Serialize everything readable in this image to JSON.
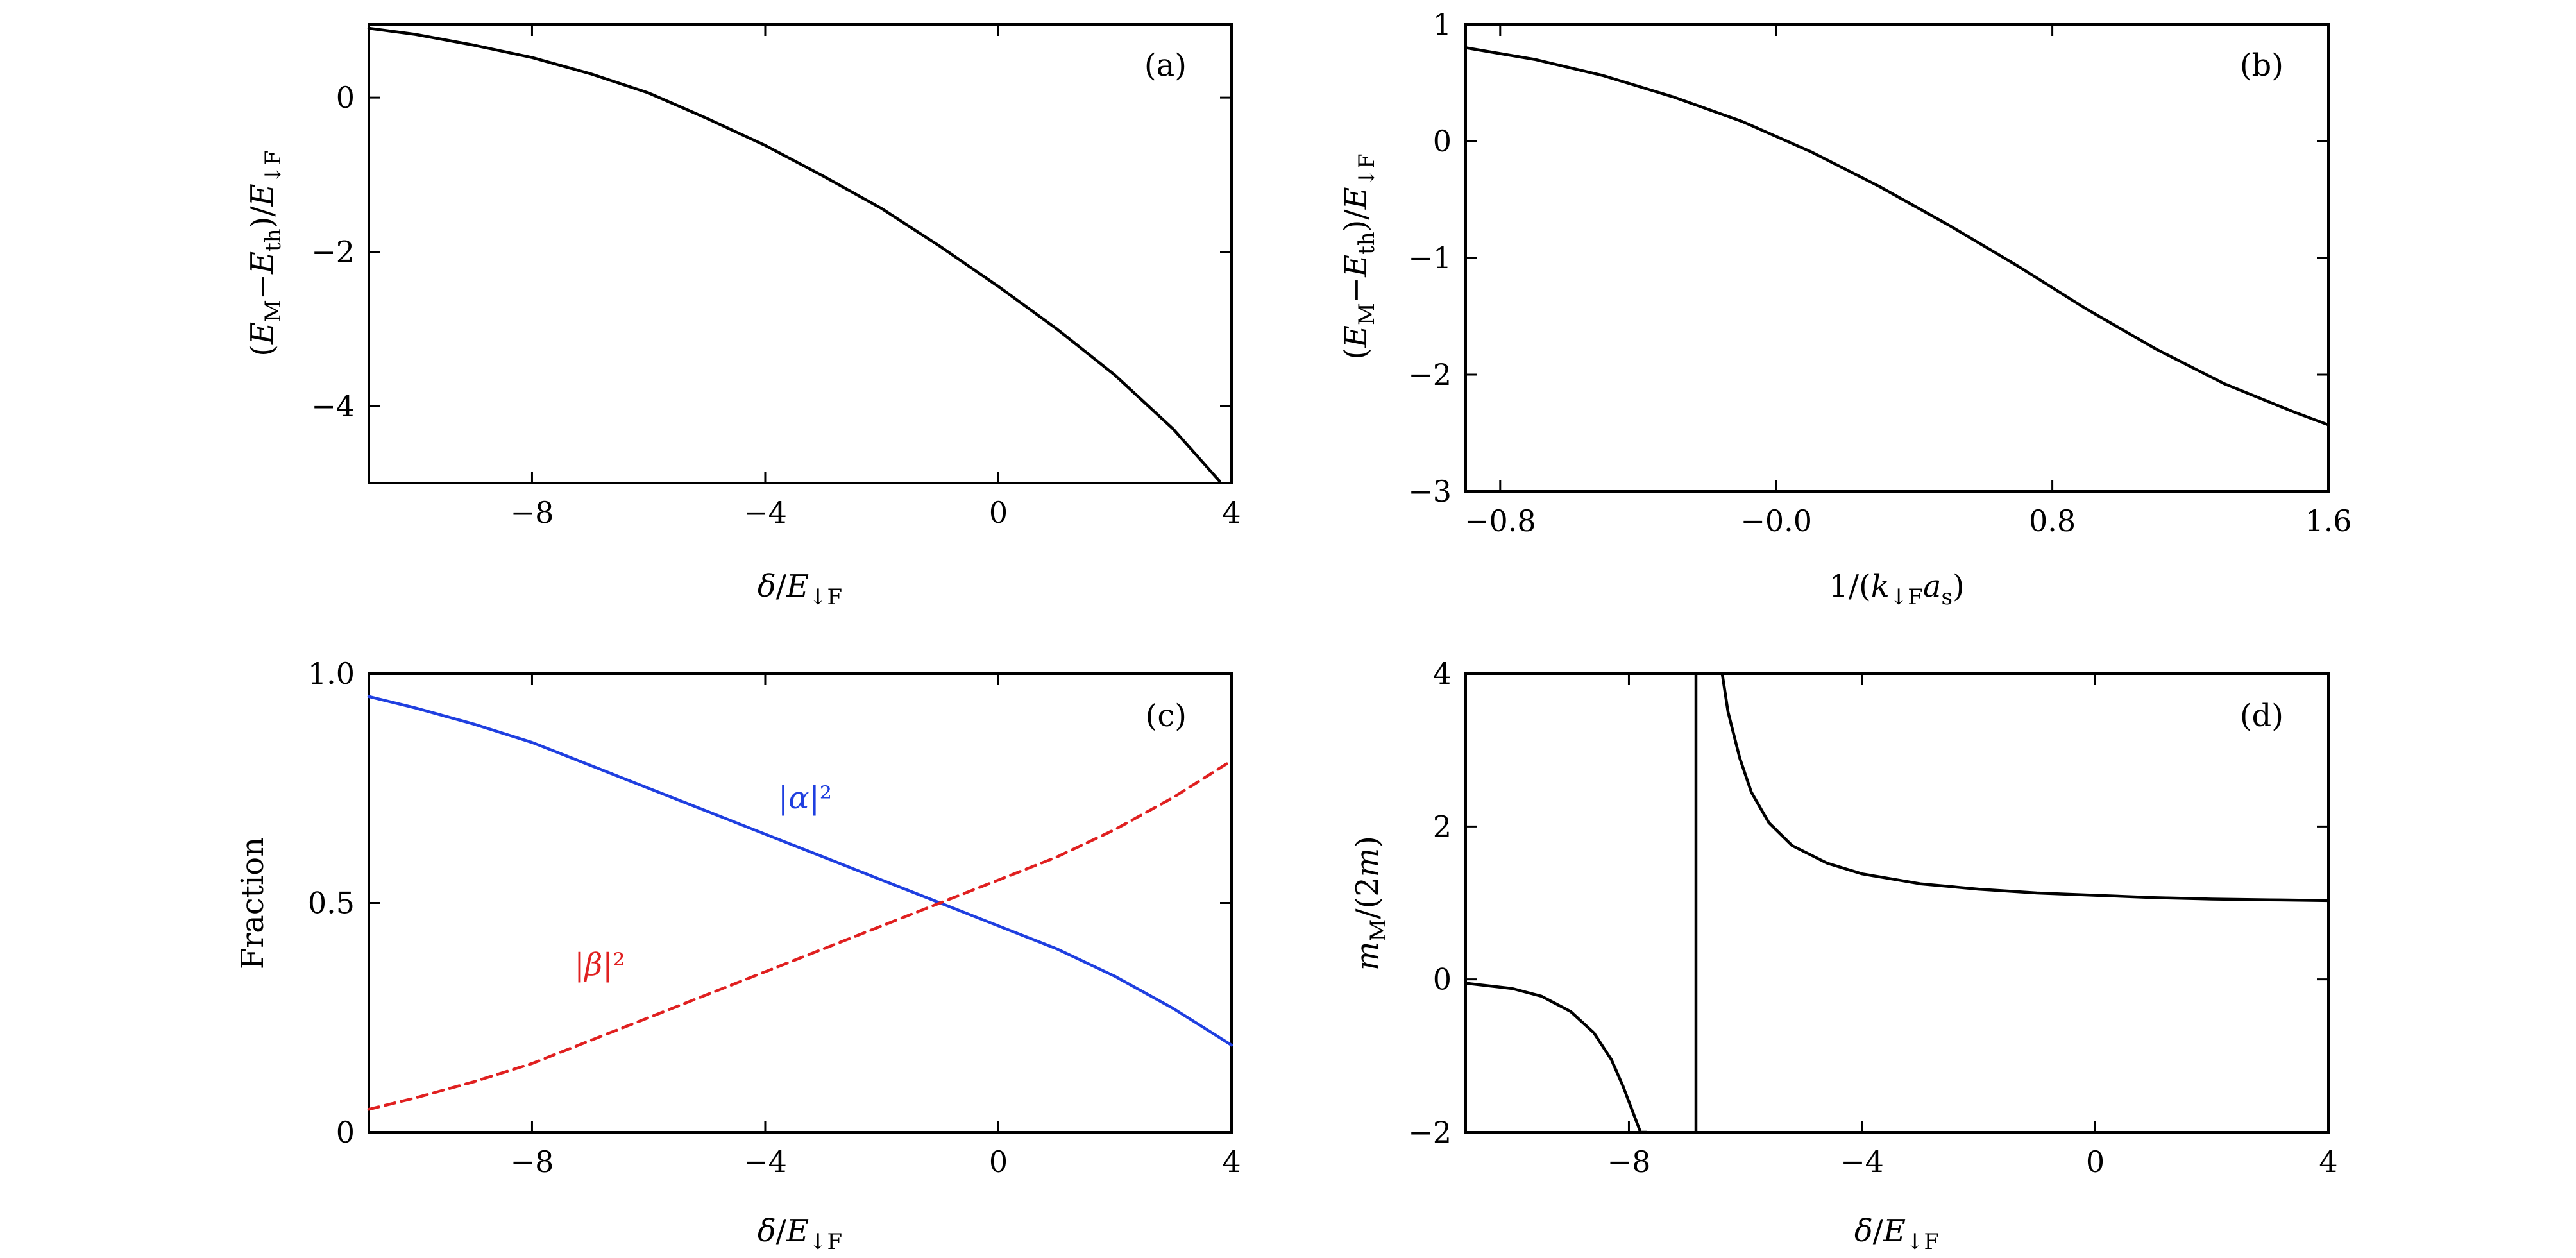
{
  "chart_data": [
    {
      "panel": "(a)",
      "type": "line",
      "xlabel": "δ/E↓F",
      "ylabel": "(EM−Eth)/E↓F",
      "xlim": [
        -10.8,
        4
      ],
      "ylim": [
        -5,
        0.95
      ],
      "xticks": [
        -8,
        -4,
        0,
        4
      ],
      "xtick_labels": [
        "−8",
        "−4",
        "0",
        "4"
      ],
      "yticks": [
        0,
        -2,
        -4
      ],
      "ytick_labels": [
        "0",
        "−2",
        "−4"
      ],
      "grid": false,
      "series": [
        {
          "color": "#000000",
          "dash": "solid",
          "x": [
            -10.8,
            -10,
            -9,
            -8,
            -7,
            -6,
            -5,
            -4,
            -3,
            -2,
            -1,
            0,
            1,
            2,
            3,
            3.8
          ],
          "y": [
            0.9,
            0.82,
            0.68,
            0.52,
            0.31,
            0.06,
            -0.27,
            -0.62,
            -1.02,
            -1.44,
            -1.93,
            -2.45,
            -3.0,
            -3.6,
            -4.3,
            -4.98
          ]
        }
      ]
    },
    {
      "panel": "(b)",
      "type": "line",
      "xlabel": "1/(k↓Fas)",
      "ylabel": "(EM−Eth)/E↓F",
      "xlim": [
        -0.9,
        1.6
      ],
      "ylim": [
        -3,
        1
      ],
      "xticks": [
        -0.8,
        0,
        0.8,
        1.6
      ],
      "xtick_labels": [
        "−0.8",
        "−0.0",
        "0.8",
        "1.6"
      ],
      "yticks": [
        1,
        0,
        -1,
        -2,
        -3
      ],
      "ytick_labels": [
        "1",
        "0",
        "−1",
        "−2",
        "−3"
      ],
      "grid": false,
      "series": [
        {
          "color": "#000000",
          "dash": "solid",
          "x": [
            -0.9,
            -0.7,
            -0.5,
            -0.3,
            -0.1,
            0.1,
            0.3,
            0.5,
            0.7,
            0.9,
            1.1,
            1.3,
            1.5,
            1.6
          ],
          "y": [
            0.8,
            0.7,
            0.56,
            0.38,
            0.17,
            -0.09,
            -0.39,
            -0.72,
            -1.07,
            -1.44,
            -1.78,
            -2.08,
            -2.32,
            -2.43
          ]
        }
      ]
    },
    {
      "panel": "(c)",
      "type": "line",
      "xlabel": "δ/E↓F",
      "ylabel": "Fraction",
      "xlim": [
        -10.8,
        4
      ],
      "ylim": [
        0,
        1.0
      ],
      "xticks": [
        -8,
        -4,
        0,
        4
      ],
      "xtick_labels": [
        "−8",
        "−4",
        "0",
        "4"
      ],
      "yticks": [
        1.0,
        0.5,
        0
      ],
      "ytick_labels": [
        "1.0",
        "0.5",
        "0"
      ],
      "grid": false,
      "annotations": [
        {
          "text": "|α|²",
          "x": -3.4,
          "y": 0.71,
          "color": "#1f3fe0"
        },
        {
          "text": "|β|²",
          "x": -7.2,
          "y": 0.35,
          "color": "#e02020"
        }
      ],
      "series": [
        {
          "label": "|α|²",
          "color": "#1f3fe0",
          "dash": "solid",
          "x": [
            -10.8,
            -10,
            -9,
            -8,
            -7,
            -6,
            -5,
            -4,
            -3,
            -2,
            -1,
            0,
            1,
            2,
            3,
            4
          ],
          "y": [
            0.95,
            0.925,
            0.89,
            0.85,
            0.8,
            0.75,
            0.7,
            0.65,
            0.6,
            0.55,
            0.5,
            0.45,
            0.4,
            0.34,
            0.27,
            0.19
          ]
        },
        {
          "label": "|β|²",
          "color": "#e02020",
          "dash": "dashed",
          "x": [
            -10.8,
            -10,
            -9,
            -8,
            -7,
            -6,
            -5,
            -4,
            -3,
            -2,
            -1,
            0,
            1,
            2,
            3,
            4
          ],
          "y": [
            0.05,
            0.075,
            0.11,
            0.15,
            0.2,
            0.25,
            0.3,
            0.35,
            0.4,
            0.45,
            0.5,
            0.55,
            0.6,
            0.66,
            0.73,
            0.81
          ]
        }
      ]
    },
    {
      "panel": "(d)",
      "type": "line",
      "xlabel": "δ/E↓F",
      "ylabel": "mM/(2m)",
      "xlim": [
        -10.8,
        4
      ],
      "ylim": [
        -2,
        4
      ],
      "xticks": [
        -8,
        -4,
        0,
        4
      ],
      "xtick_labels": [
        "−8",
        "−4",
        "0",
        "4"
      ],
      "yticks": [
        4,
        2,
        0,
        -2
      ],
      "ytick_labels": [
        "4",
        "2",
        "0",
        "−2"
      ],
      "grid": false,
      "series": [
        {
          "color": "#000000",
          "dash": "solid",
          "x": [
            -10.8,
            -10,
            -9.5,
            -9,
            -8.6,
            -8.3,
            -8.1,
            -7.95,
            -7.8,
            -7.7
          ],
          "y": [
            -0.05,
            -0.12,
            -0.22,
            -0.42,
            -0.7,
            -1.05,
            -1.4,
            -1.7,
            -2.0,
            -2.0
          ]
        },
        {
          "color": "#000000",
          "dash": "solid",
          "x": [
            -6.85,
            -6.85
          ],
          "y": [
            -2,
            4
          ]
        },
        {
          "color": "#000000",
          "dash": "solid",
          "x": [
            -6.4,
            -6.3,
            -6.1,
            -5.9,
            -5.6,
            -5.2,
            -4.6,
            -4.0,
            -3.0,
            -2.0,
            -1.0,
            0,
            1,
            2,
            3,
            4
          ],
          "y": [
            4.0,
            3.5,
            2.9,
            2.45,
            2.05,
            1.75,
            1.52,
            1.38,
            1.25,
            1.18,
            1.13,
            1.1,
            1.07,
            1.05,
            1.04,
            1.03
          ]
        }
      ]
    }
  ]
}
